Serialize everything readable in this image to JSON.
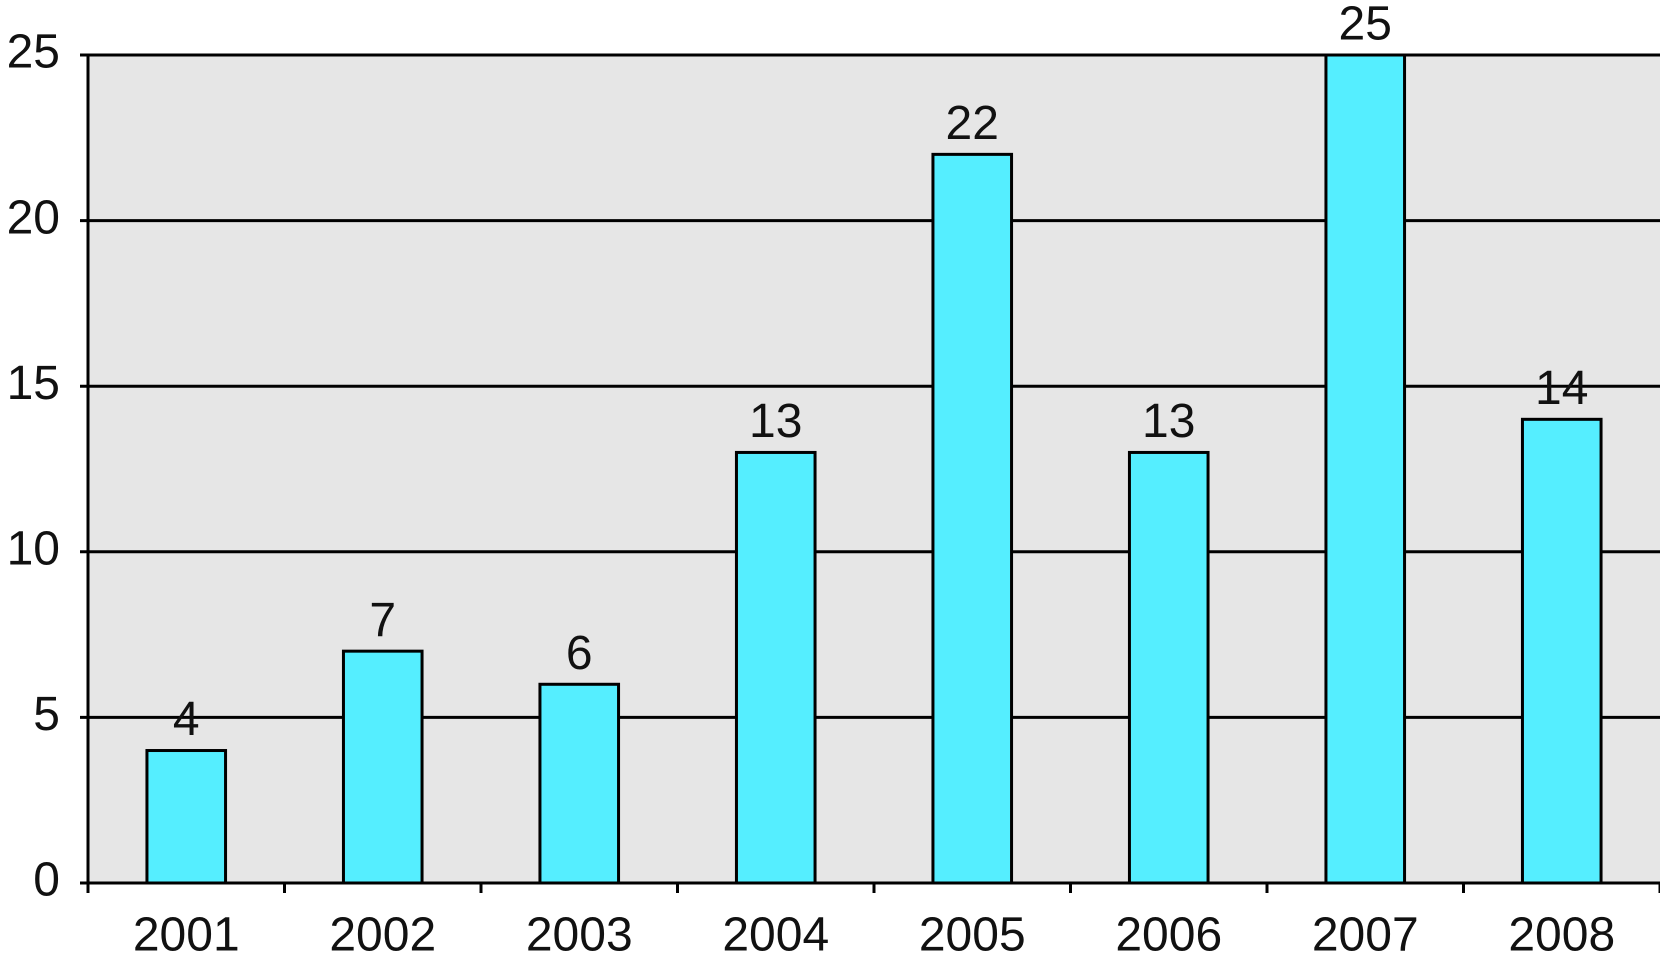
{
  "chart_data": {
    "type": "bar",
    "categories": [
      "2001",
      "2002",
      "2003",
      "2004",
      "2005",
      "2006",
      "2007",
      "2008"
    ],
    "values": [
      4,
      7,
      6,
      13,
      22,
      13,
      25,
      14
    ],
    "color": "#55eeff",
    "ylim": [
      0,
      25
    ],
    "yticks": [
      0,
      5,
      10,
      15,
      20,
      25
    ],
    "grid": true
  }
}
